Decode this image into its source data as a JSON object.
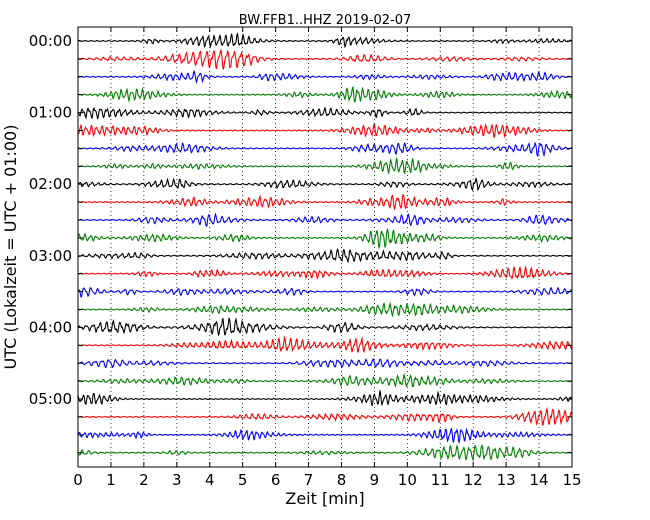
{
  "chart_data": {
    "type": "line",
    "title": "BW.FFB1..HHZ 2019-02-07",
    "xlabel": "Zeit  [min]",
    "ylabel": "UTC (Lokalzeit = UTC + 01:00)",
    "xlim": [
      0,
      15
    ],
    "x_ticks": [
      "0",
      "1",
      "2",
      "3",
      "4",
      "5",
      "6",
      "7",
      "8",
      "9",
      "10",
      "11",
      "12",
      "13",
      "14",
      "15"
    ],
    "y_tick_labels": [
      "00:00",
      "01:00",
      "02:00",
      "03:00",
      "04:00",
      "05:00"
    ],
    "grid": "vertical dotted",
    "trace_interval_min": 15,
    "trace_count": 24,
    "colors": [
      "#000000",
      "#ff0000",
      "#0000ff",
      "#008000"
    ]
  }
}
